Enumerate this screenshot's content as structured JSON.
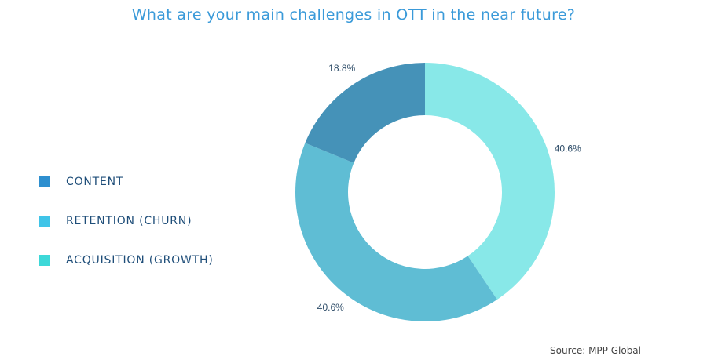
{
  "title": "What are your main challenges in OTT in the near future?",
  "source": "Source: MPP Global",
  "chart_data": {
    "type": "pie",
    "donut": true,
    "title": "What are your main challenges in OTT in the near future?",
    "categories": [
      "CONTENT",
      "RETENTION (CHURN)",
      "ACQUISITION (GROWTH)"
    ],
    "values": [
      18.8,
      40.6,
      40.6
    ],
    "labels": [
      "18.8%",
      "40.6%",
      "40.6%"
    ],
    "legend_colors": [
      "#2e8fcf",
      "#3fc4e8",
      "#3dd8d8"
    ],
    "slice_colors": [
      "#4592b8",
      "#5fbdd4",
      "#88e8e8"
    ],
    "legend_position": "left"
  }
}
